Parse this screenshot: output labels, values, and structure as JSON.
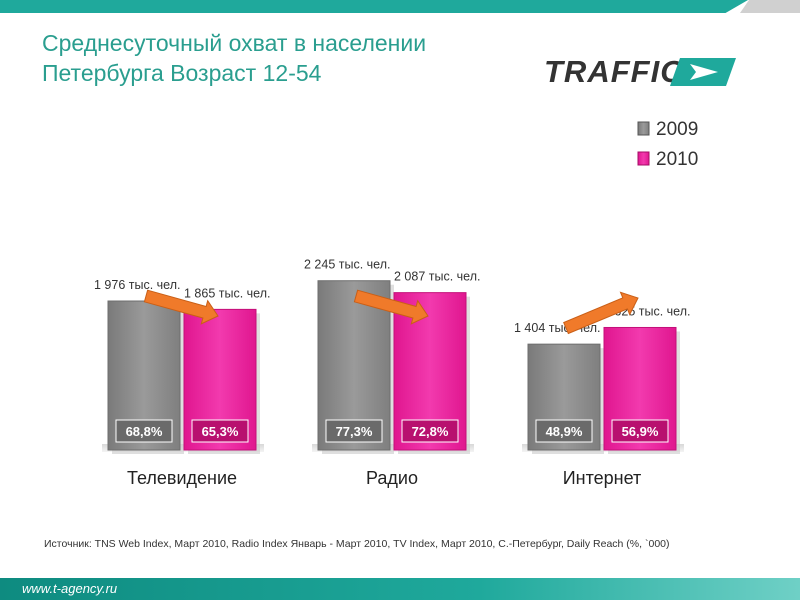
{
  "title_line1": "Среднесуточный охват в населении",
  "title_line2": "Петербурга Возраст 12-54",
  "logo_text": "TRAFFIC",
  "source": "Источник: TNS Web Index, Март 2010, Radio Index Январь - Март 2010, TV Index, Март 2010, С.-Петербург, Daily Reach (%, `000)",
  "footer_url": "www.t-agency.ru",
  "colors": {
    "teal": "#2a9e8f",
    "series_2009": "#8c8c8c",
    "series_2010": "#ee1c9a",
    "arrow": "#f07a2a"
  },
  "chart_data": {
    "type": "bar",
    "categories": [
      "Телевидение",
      "Радио",
      "Интернет"
    ],
    "series": [
      {
        "name": "2009",
        "values": [
          1976,
          2245,
          1404
        ],
        "value_labels": [
          "1 976 тыс. чел.",
          "2 245 тыс. чел.",
          "1 404 тыс. чел."
        ],
        "percent_labels": [
          "68,8%",
          "77,3%",
          "48,9%"
        ]
      },
      {
        "name": "2010",
        "values": [
          1865,
          2087,
          1625
        ],
        "value_labels": [
          "1 865 тыс. чел.",
          "2 087 тыс. чел.",
          "1 625 тыс. чел."
        ],
        "percent_labels": [
          "65,3%",
          "72,8%",
          "56,9%"
        ]
      }
    ],
    "ylim": [
      0,
      2500
    ],
    "legend_position": "top-right"
  }
}
